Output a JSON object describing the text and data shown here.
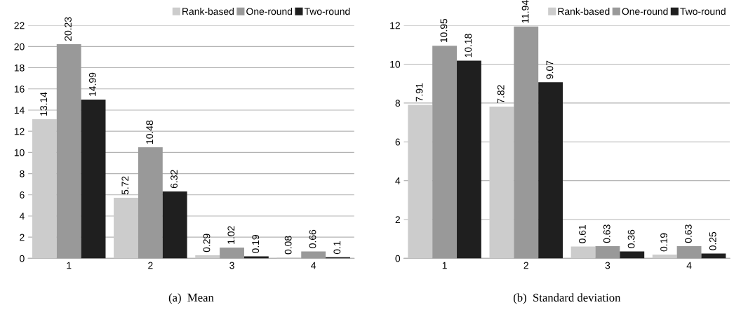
{
  "chart_data": [
    {
      "type": "bar",
      "title": "(a)  Mean",
      "categories": [
        "1",
        "2",
        "3",
        "4"
      ],
      "series": [
        {
          "name": "Rank-based",
          "color": "#cccccc",
          "values": [
            13.14,
            5.72,
            0.29,
            0.08
          ]
        },
        {
          "name": "One-round",
          "color": "#999999",
          "values": [
            20.23,
            10.48,
            1.02,
            0.66
          ]
        },
        {
          "name": "Two-round",
          "color": "#1f1f1f",
          "values": [
            14.99,
            6.32,
            0.19,
            0.1
          ]
        }
      ],
      "ylim": [
        0,
        22
      ],
      "yticks": [
        0,
        2,
        4,
        6,
        8,
        10,
        12,
        14,
        16,
        18,
        20,
        22
      ],
      "grid": "y",
      "legend": "top right",
      "data_labels": true
    },
    {
      "type": "bar",
      "title": "(b)  Standard deviation",
      "categories": [
        "1",
        "2",
        "3",
        "4"
      ],
      "series": [
        {
          "name": "Rank-based",
          "color": "#cccccc",
          "values": [
            7.91,
            7.82,
            0.61,
            0.19
          ]
        },
        {
          "name": "One-round",
          "color": "#999999",
          "values": [
            10.95,
            11.94,
            0.63,
            0.63
          ]
        },
        {
          "name": "Two-round",
          "color": "#1f1f1f",
          "values": [
            10.18,
            9.07,
            0.36,
            0.25
          ]
        }
      ],
      "ylim": [
        0,
        12
      ],
      "yticks": [
        0,
        2,
        4,
        6,
        8,
        10,
        12
      ],
      "grid": "y",
      "legend": "top right",
      "data_labels": true
    }
  ]
}
